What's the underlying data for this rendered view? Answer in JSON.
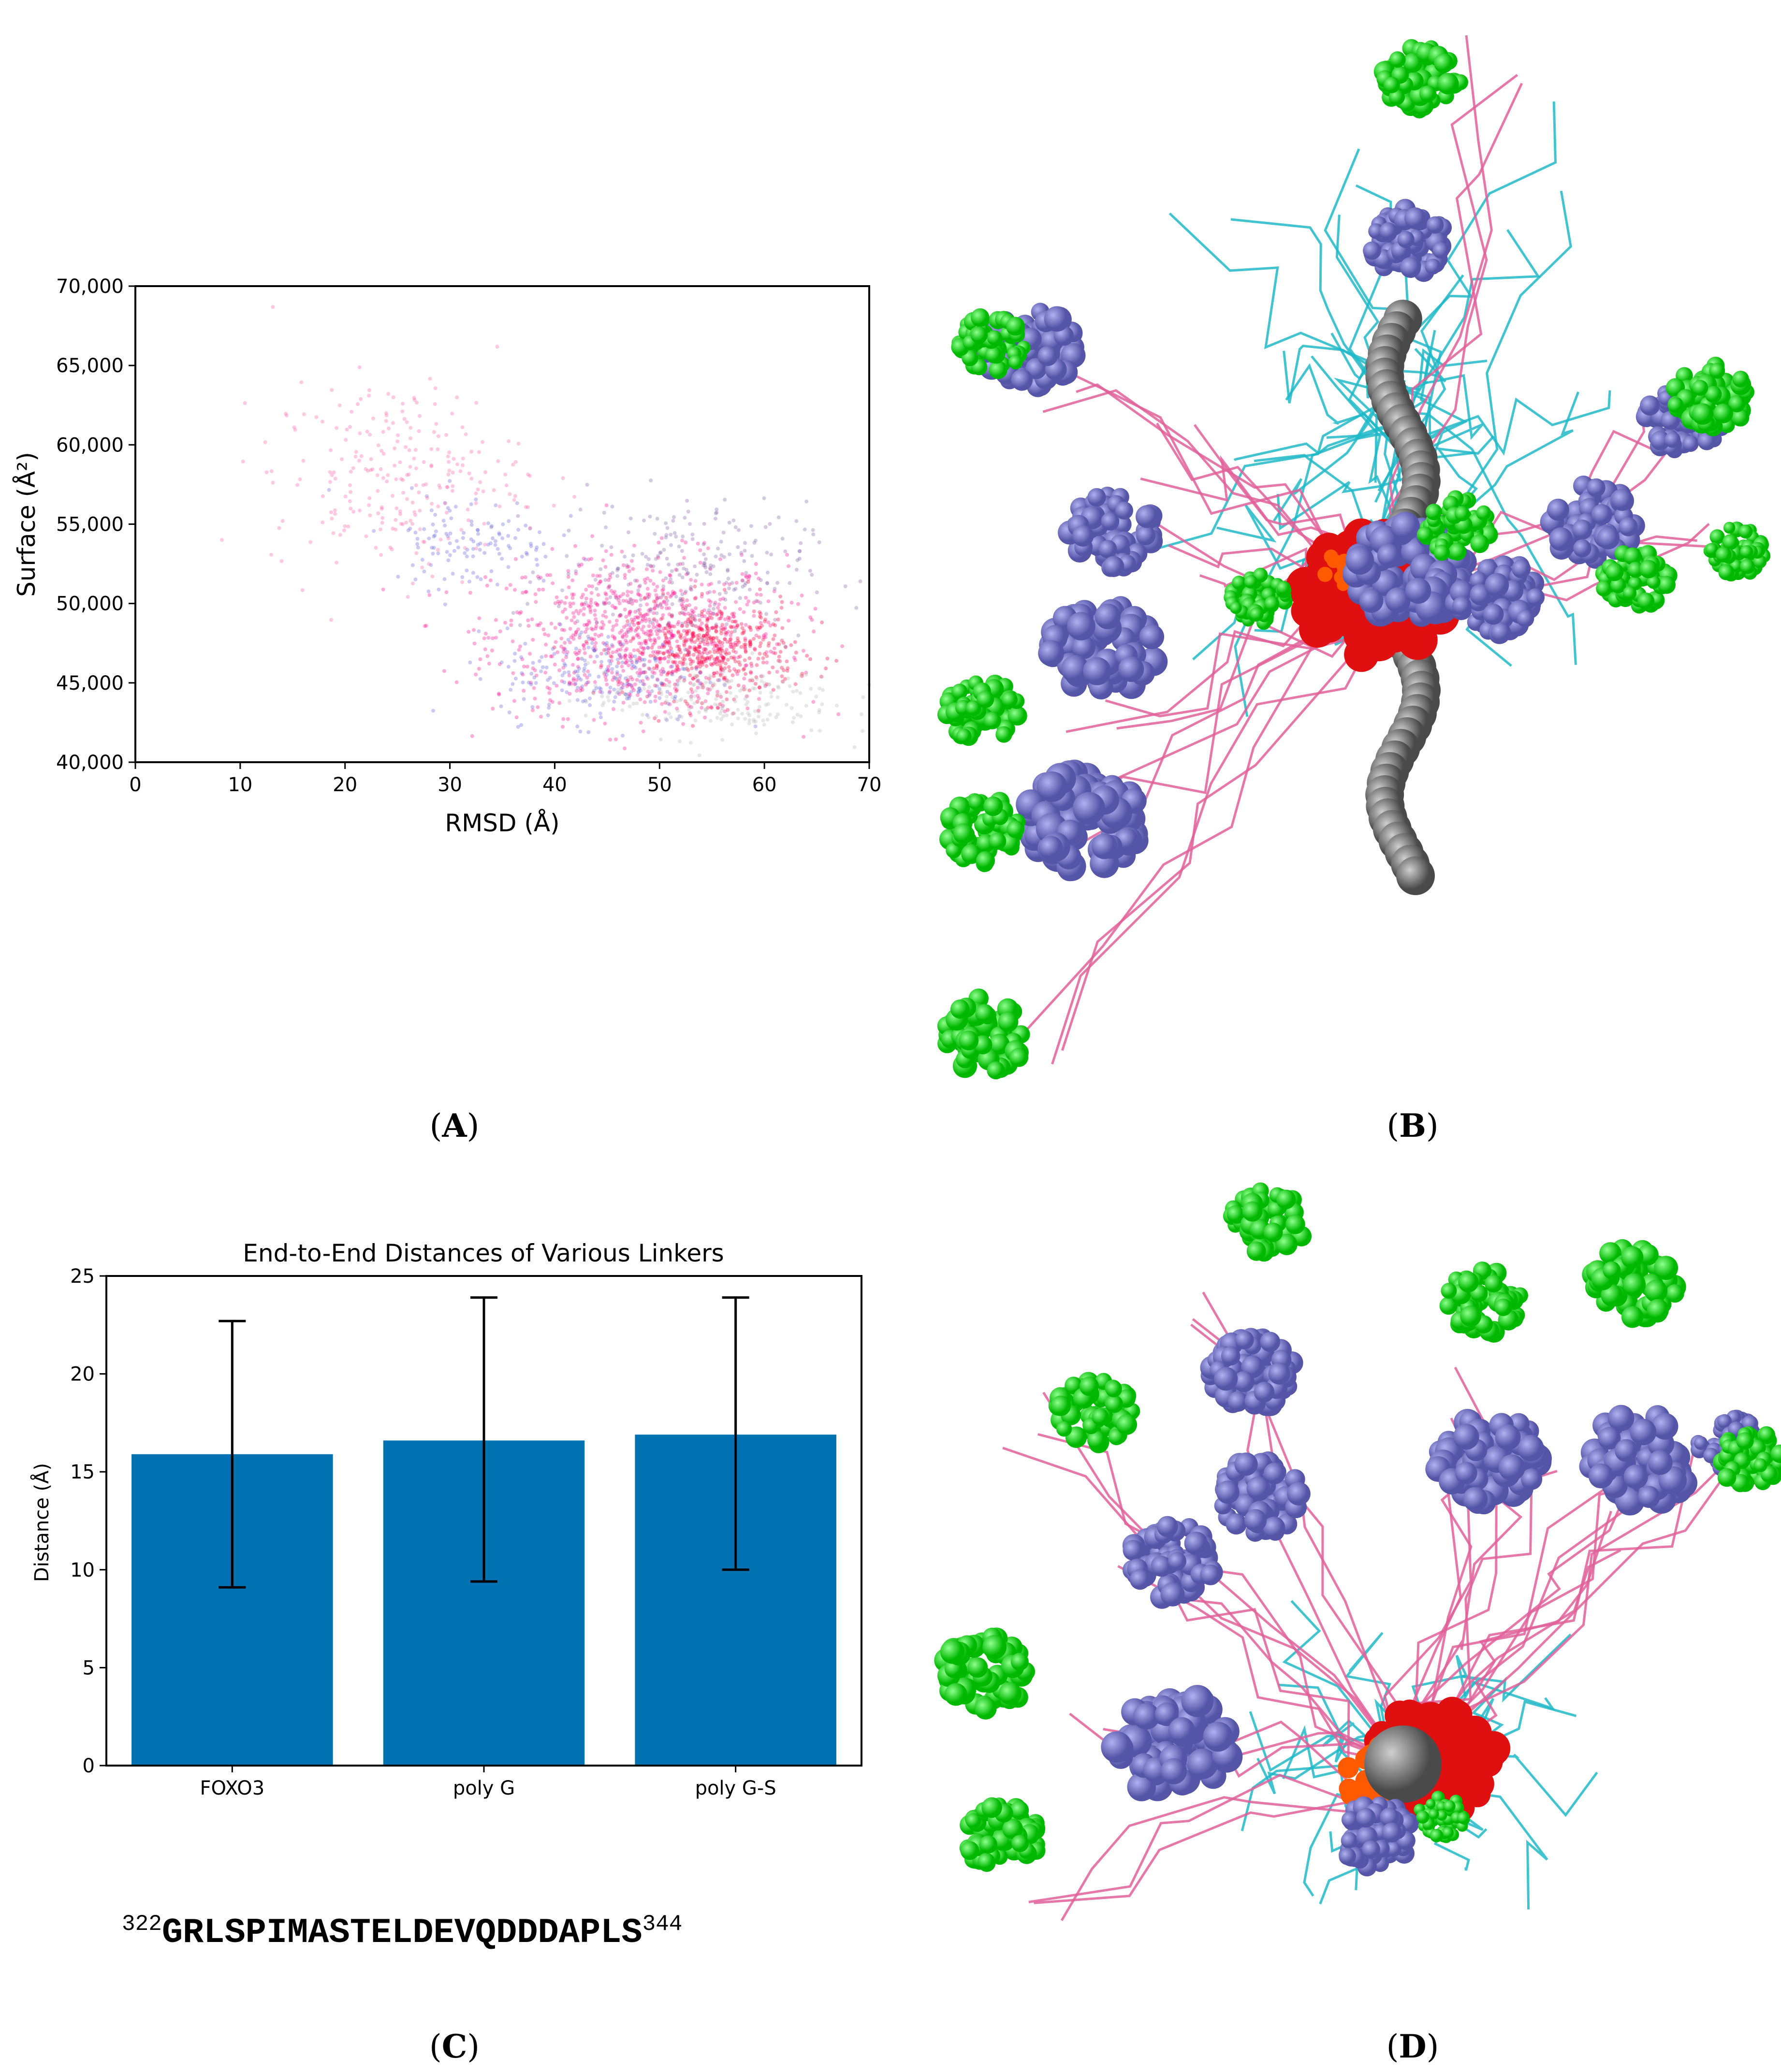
{
  "panels": {
    "a": {
      "caption_label": "A"
    },
    "b": {
      "caption_label": "B"
    },
    "c": {
      "caption_label": "C"
    },
    "d": {
      "caption_label": "D"
    }
  },
  "chart_data": [
    {
      "type": "scatter",
      "xlabel": "RMSD (Å)",
      "ylabel": "Surface (Å²)",
      "xlim": [
        0,
        70
      ],
      "ylim": [
        40000,
        70000
      ],
      "xticks": [
        0,
        10,
        20,
        30,
        40,
        50,
        60,
        70
      ],
      "yticks": [
        "40,000",
        "45,000",
        "50,000",
        "55,000",
        "60,000",
        "65,000",
        "70,000"
      ],
      "colors": [
        "#ff1493",
        "#ff0040",
        "#6666dd",
        "#aaaaaa"
      ],
      "clusters": [
        {
          "cx": 48,
          "cy": 48000,
          "sx": 7,
          "sy": 2500,
          "n": 900,
          "color": "#ff1493"
        },
        {
          "cx": 55,
          "cy": 47000,
          "sx": 4,
          "sy": 1500,
          "n": 450,
          "color": "#ff0040"
        },
        {
          "cx": 52,
          "cy": 52000,
          "sx": 6,
          "sy": 2200,
          "n": 250,
          "color": "#8866aa"
        },
        {
          "cx": 45,
          "cy": 45500,
          "sx": 5,
          "sy": 1500,
          "n": 200,
          "color": "#6666dd"
        },
        {
          "cx": 32,
          "cy": 54000,
          "sx": 4,
          "sy": 1500,
          "n": 120,
          "color": "#6666dd"
        },
        {
          "cx": 25,
          "cy": 58000,
          "sx": 6,
          "sy": 3000,
          "n": 250,
          "color": "#ff66aa"
        },
        {
          "cx": 55,
          "cy": 44000,
          "sx": 6,
          "sy": 1200,
          "n": 200,
          "color": "#bbbbbb"
        }
      ]
    },
    {
      "type": "bar",
      "title": "End-to-End Distances of Various Linkers",
      "ylabel": "Distance (Å)",
      "categories": [
        "FOXO3",
        "poly G",
        "poly G-S"
      ],
      "values": [
        15.9,
        16.6,
        16.9
      ],
      "error_low": [
        9.1,
        9.4,
        10.0
      ],
      "error_high": [
        22.7,
        23.9,
        23.9
      ],
      "ylim": [
        0,
        25
      ],
      "yticks": [
        0,
        5,
        10,
        15,
        20,
        25
      ],
      "bar_color": "#0072b2"
    }
  ],
  "sequence": {
    "start": "322",
    "residues": "GRLSPIMASTELDEVQDDDAPLS",
    "end": "344"
  }
}
